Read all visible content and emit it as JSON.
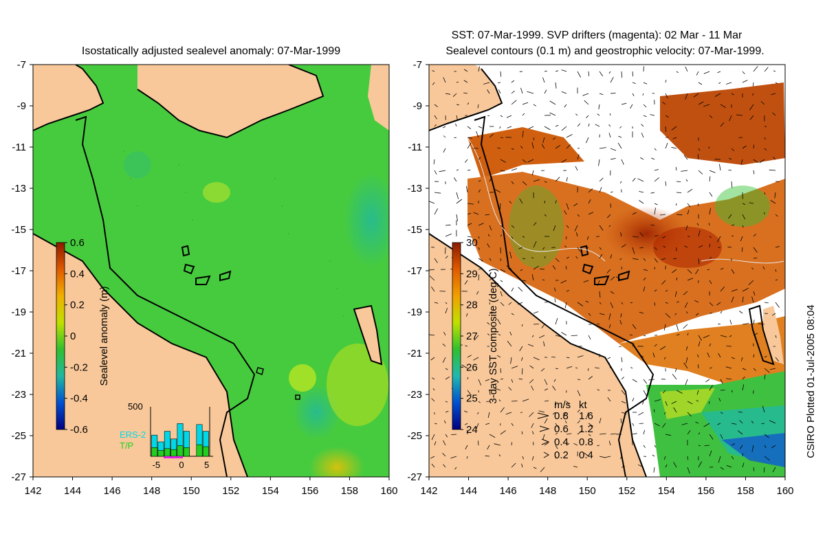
{
  "credit": "CSIRO Plotted 01-Jul-2005 08:04",
  "chart_data": [
    {
      "type": "heatmap",
      "title": "Isostatically adjusted sealevel anomaly: 07-Mar-1999",
      "xlim": [
        142,
        160
      ],
      "ylim": [
        -27,
        -7
      ],
      "x_ticks": [
        142,
        144,
        146,
        148,
        150,
        152,
        154,
        156,
        158,
        160
      ],
      "y_ticks": [
        -7,
        -9,
        -11,
        -13,
        -15,
        -17,
        -19,
        -21,
        -23,
        -25,
        -27
      ],
      "land_color": "#f8c89a",
      "colorbar": {
        "label": "Sealevel anomaly (m)",
        "range": [
          -0.6,
          0.6
        ],
        "ticks": [
          0.6,
          0.4,
          0.2,
          0,
          -0.2,
          -0.4,
          -0.6
        ],
        "colors": [
          "#8b1a00",
          "#e05a00",
          "#f0b000",
          "#c0e000",
          "#30c030",
          "#20b8a0",
          "#0050d0",
          "#000080"
        ]
      },
      "inset": {
        "ymax_label": "500",
        "series": [
          {
            "name": "ERS-2",
            "color": "#00d8e8",
            "values": [
              220,
              150,
              260,
              180,
              340,
              260,
              0,
              330,
              260
            ]
          },
          {
            "name": "T/P",
            "color": "#20d020",
            "values": [
              90,
              60,
              80,
              70,
              110,
              90,
              0,
              120,
              100
            ]
          }
        ],
        "x_ticks": [
          -5,
          0,
          5
        ]
      }
    },
    {
      "type": "heatmap",
      "title_lines": [
        "SST: 07-Mar-1999. SVP drifters (magenta): 02 Mar - 11 Mar",
        "Sealevel contours (0.1 m) and geostrophic velocity: 07-Mar-1999."
      ],
      "xlim": [
        142,
        160
      ],
      "ylim": [
        -27,
        -7
      ],
      "x_ticks": [
        142,
        144,
        146,
        148,
        150,
        152,
        154,
        156,
        158,
        160
      ],
      "y_ticks": [
        -7,
        -9,
        -11,
        -13,
        -15,
        -17,
        -19,
        -21,
        -23,
        -25,
        -27
      ],
      "land_color": "#f8c89a",
      "colorbar": {
        "label": "3-day SST composite (deg C)",
        "range": [
          24,
          30
        ],
        "ticks": [
          30,
          29,
          28,
          27,
          26,
          25,
          24
        ],
        "colors": [
          "#8b1a00",
          "#e05a00",
          "#f0a000",
          "#c0e000",
          "#30c030",
          "#20b8b0",
          "#0050d0",
          "#000080"
        ]
      },
      "speed_legend": {
        "header": [
          "m/s",
          "kt"
        ],
        "rows": [
          [
            "0.8",
            "1.6"
          ],
          [
            "0.6",
            "1.2"
          ],
          [
            "0.4",
            "0.8"
          ],
          [
            "0.2",
            "0.4"
          ]
        ]
      }
    }
  ]
}
